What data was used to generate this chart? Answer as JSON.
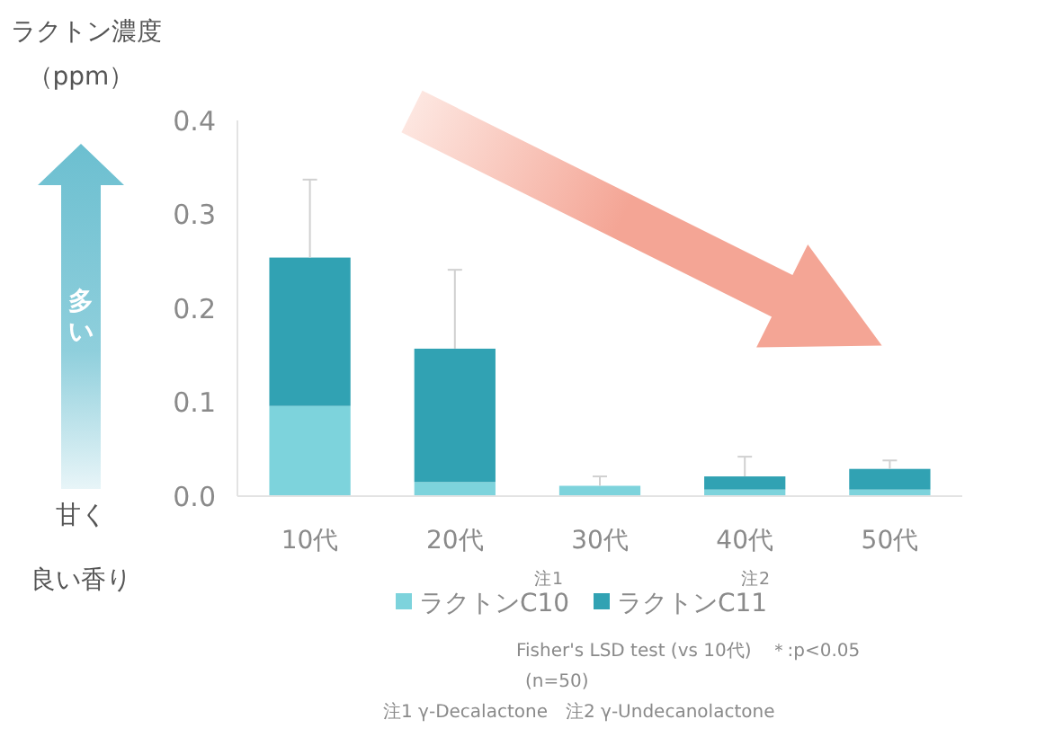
{
  "chart_data": {
    "type": "bar",
    "stacked": true,
    "ylabel": "ラクトン濃度（ppm）",
    "categories": [
      "10代",
      "20代",
      "30代",
      "40代",
      "50代"
    ],
    "series": [
      {
        "name": "ラクトンC10",
        "color": "#7dd3dc",
        "values": [
          0.096,
          0.015,
          0.011,
          0.007,
          0.007
        ]
      },
      {
        "name": "ラクトンC11",
        "color": "#31a2b3",
        "values": [
          0.158,
          0.142,
          0,
          0.014,
          0.022
        ],
        "errors": [
          0.083,
          0.084,
          0.01,
          0.021,
          0.009
        ]
      }
    ],
    "ylim": [
      0,
      0.4
    ],
    "yticks": [
      {
        "value": 0,
        "label": "0.0"
      },
      0.1,
      0.2,
      0.3,
      0.4
    ],
    "grid": false,
    "legend": "bottom",
    "annotations": [
      "多い",
      "甘く",
      "良い香り",
      "注1",
      "注2",
      "Fisher's LSD test (vs 10代)　＊:p<0.05",
      "(n=50)",
      "注1  γ-Decalactone　注2  γ-Undecanolactone"
    ]
  }
}
